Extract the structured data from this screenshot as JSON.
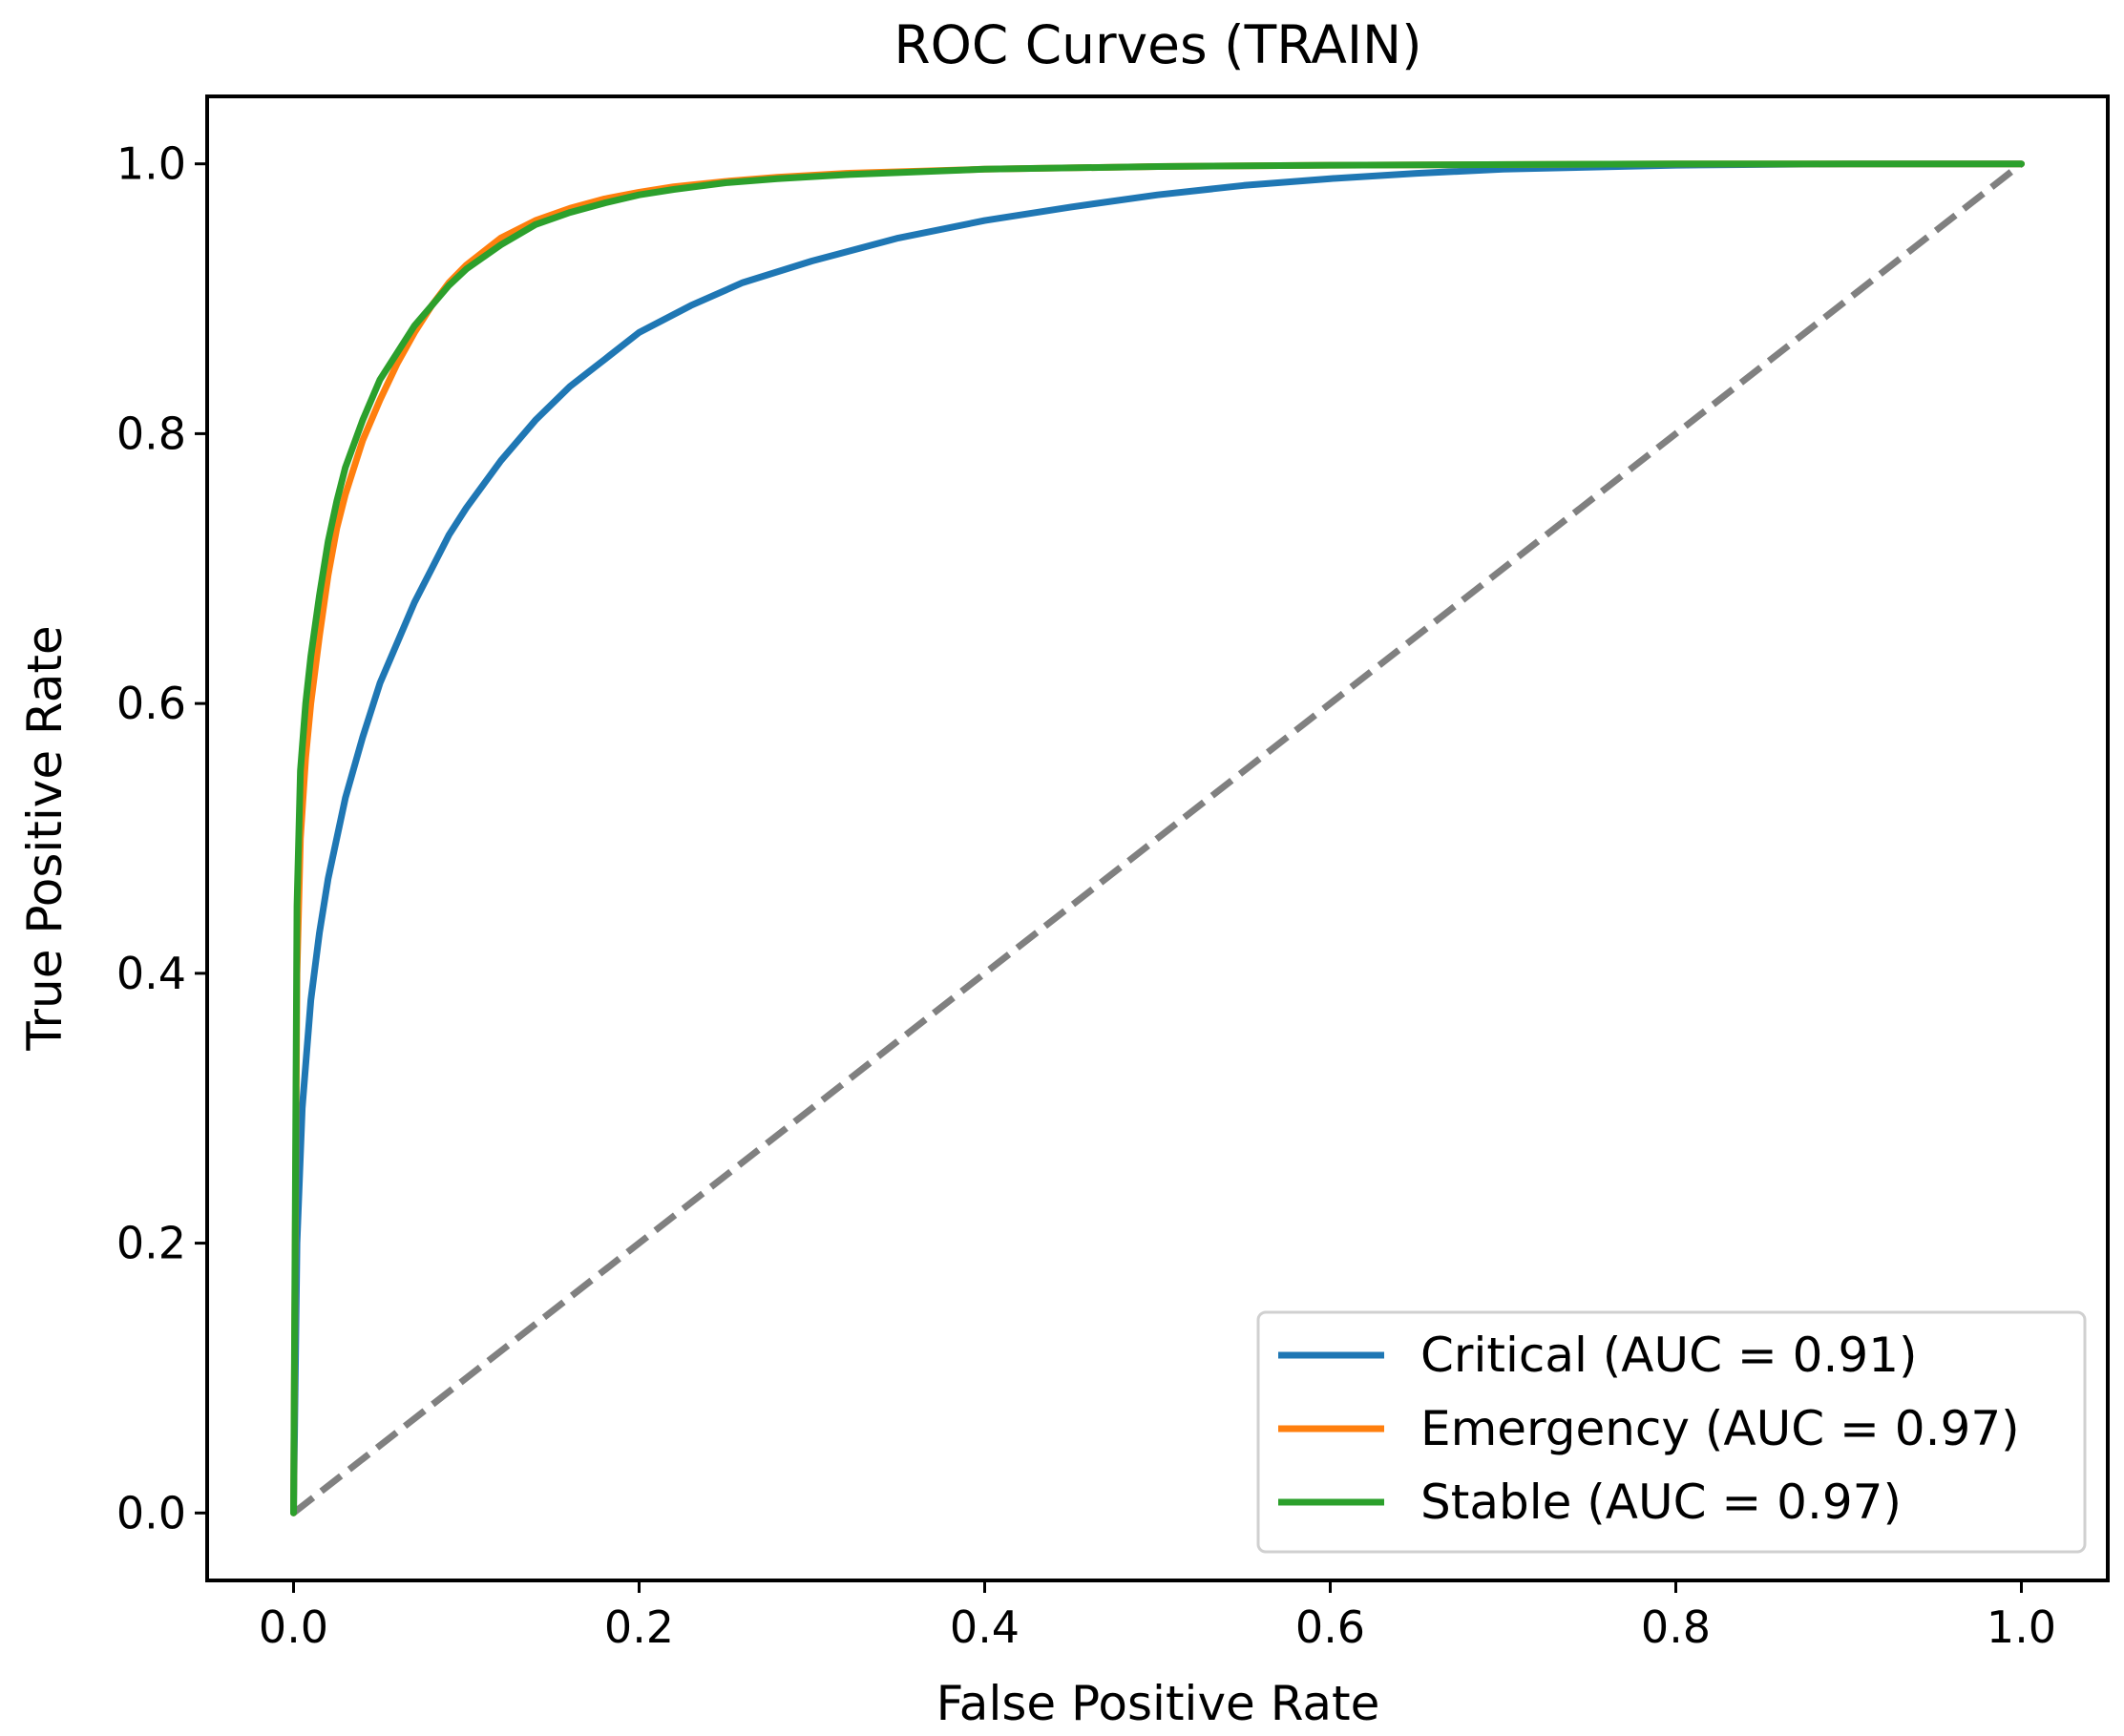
{
  "chart_data": {
    "type": "line",
    "title": "ROC Curves (TRAIN)",
    "xlabel": "False Positive Rate",
    "ylabel": "True Positive Rate",
    "xlim": [
      -0.05,
      1.05
    ],
    "ylim": [
      -0.05,
      1.05
    ],
    "xticks": [
      0.0,
      0.2,
      0.4,
      0.6,
      0.8,
      1.0
    ],
    "yticks": [
      0.0,
      0.2,
      0.4,
      0.6,
      0.8,
      1.0
    ],
    "xtick_labels": [
      "0.0",
      "0.2",
      "0.4",
      "0.6",
      "0.8",
      "1.0"
    ],
    "ytick_labels": [
      "0.0",
      "0.2",
      "0.4",
      "0.6",
      "0.8",
      "1.0"
    ],
    "grid": false,
    "legend_position": "bottom-right",
    "series": [
      {
        "name": "Critical (AUC = 0.91)",
        "color": "#1f77b4",
        "x": [
          0.0,
          0.002,
          0.005,
          0.01,
          0.015,
          0.02,
          0.03,
          0.04,
          0.05,
          0.06,
          0.07,
          0.08,
          0.09,
          0.1,
          0.12,
          0.14,
          0.16,
          0.18,
          0.2,
          0.23,
          0.26,
          0.3,
          0.35,
          0.4,
          0.45,
          0.5,
          0.55,
          0.6,
          0.65,
          0.7,
          0.8,
          0.9,
          1.0
        ],
        "y": [
          0.0,
          0.2,
          0.3,
          0.38,
          0.43,
          0.47,
          0.53,
          0.575,
          0.615,
          0.645,
          0.675,
          0.7,
          0.725,
          0.745,
          0.78,
          0.81,
          0.835,
          0.855,
          0.875,
          0.895,
          0.912,
          0.928,
          0.945,
          0.958,
          0.968,
          0.977,
          0.984,
          0.989,
          0.993,
          0.996,
          0.999,
          1.0,
          1.0
        ]
      },
      {
        "name": "Emergency (AUC = 0.97)",
        "color": "#ff7f0e",
        "x": [
          0.0,
          0.002,
          0.004,
          0.007,
          0.01,
          0.015,
          0.02,
          0.025,
          0.03,
          0.04,
          0.05,
          0.06,
          0.07,
          0.08,
          0.09,
          0.1,
          0.12,
          0.14,
          0.16,
          0.18,
          0.2,
          0.22,
          0.25,
          0.28,
          0.32,
          0.4,
          0.5,
          0.6,
          0.8,
          1.0
        ],
        "y": [
          0.0,
          0.4,
          0.5,
          0.56,
          0.6,
          0.65,
          0.695,
          0.73,
          0.755,
          0.795,
          0.825,
          0.852,
          0.875,
          0.895,
          0.912,
          0.925,
          0.945,
          0.958,
          0.967,
          0.974,
          0.979,
          0.983,
          0.987,
          0.99,
          0.993,
          0.996,
          0.998,
          0.999,
          1.0,
          1.0
        ]
      },
      {
        "name": "Stable (AUC = 0.97)",
        "color": "#2ca02c",
        "x": [
          0.0,
          0.002,
          0.004,
          0.007,
          0.01,
          0.015,
          0.02,
          0.025,
          0.03,
          0.04,
          0.05,
          0.06,
          0.07,
          0.08,
          0.09,
          0.1,
          0.12,
          0.14,
          0.16,
          0.18,
          0.2,
          0.22,
          0.25,
          0.28,
          0.32,
          0.4,
          0.5,
          0.6,
          0.8,
          1.0
        ],
        "y": [
          0.0,
          0.45,
          0.55,
          0.6,
          0.635,
          0.68,
          0.72,
          0.75,
          0.775,
          0.81,
          0.84,
          0.86,
          0.88,
          0.895,
          0.91,
          0.922,
          0.94,
          0.955,
          0.964,
          0.971,
          0.977,
          0.981,
          0.986,
          0.989,
          0.992,
          0.996,
          0.998,
          0.999,
          1.0,
          1.0
        ]
      }
    ],
    "reference_line": {
      "name": "chance",
      "color": "#808080",
      "x": [
        0.0,
        1.0
      ],
      "y": [
        0.0,
        1.0
      ],
      "style": "dashed"
    }
  }
}
